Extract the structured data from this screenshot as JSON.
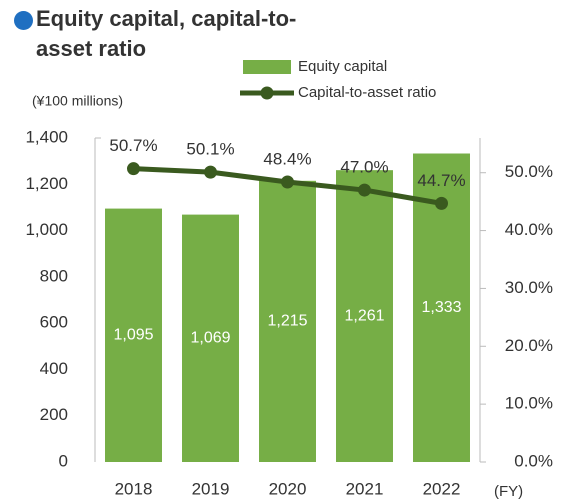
{
  "chart_data": {
    "type": "bar-line",
    "title": "Equity capital, capital-to-asset ratio",
    "y_label": "(¥100 millions)",
    "x_label": "(FY)",
    "categories": [
      "2018",
      "2019",
      "2020",
      "2021",
      "2022"
    ],
    "series": [
      {
        "name": "Equity capital",
        "type": "bar",
        "color": "#76ae46",
        "values": [
          1095,
          1069,
          1215,
          1261,
          1333
        ],
        "value_labels": [
          "1,095",
          "1,069",
          "1,215",
          "1,261",
          "1,333"
        ]
      },
      {
        "name": "Capital-to-asset ratio",
        "type": "line",
        "axis": "y2",
        "color": "#3a5a1f",
        "values": [
          50.7,
          50.1,
          48.4,
          47.0,
          44.7
        ],
        "value_labels": [
          "50.7%",
          "50.1%",
          "48.4%",
          "47.0%",
          "44.7%"
        ]
      }
    ],
    "ylim": [
      0,
      1400
    ],
    "yticks": [
      0,
      200,
      400,
      600,
      800,
      {
        "value": 1000,
        "label": "1,000"
      },
      {
        "value": 1200,
        "label": "1,200"
      },
      {
        "value": 1400,
        "label": "1,400"
      }
    ],
    "y2lim": [
      0,
      56
    ],
    "y2ticks": [
      {
        "value": 0,
        "label": "0.0%"
      },
      {
        "value": 10,
        "label": "10.0%"
      },
      {
        "value": 20,
        "label": "20.0%"
      },
      {
        "value": 30,
        "label": "30.0%"
      },
      {
        "value": 40,
        "label": "40.0%"
      },
      {
        "value": 50,
        "label": "50.0%"
      }
    ]
  }
}
